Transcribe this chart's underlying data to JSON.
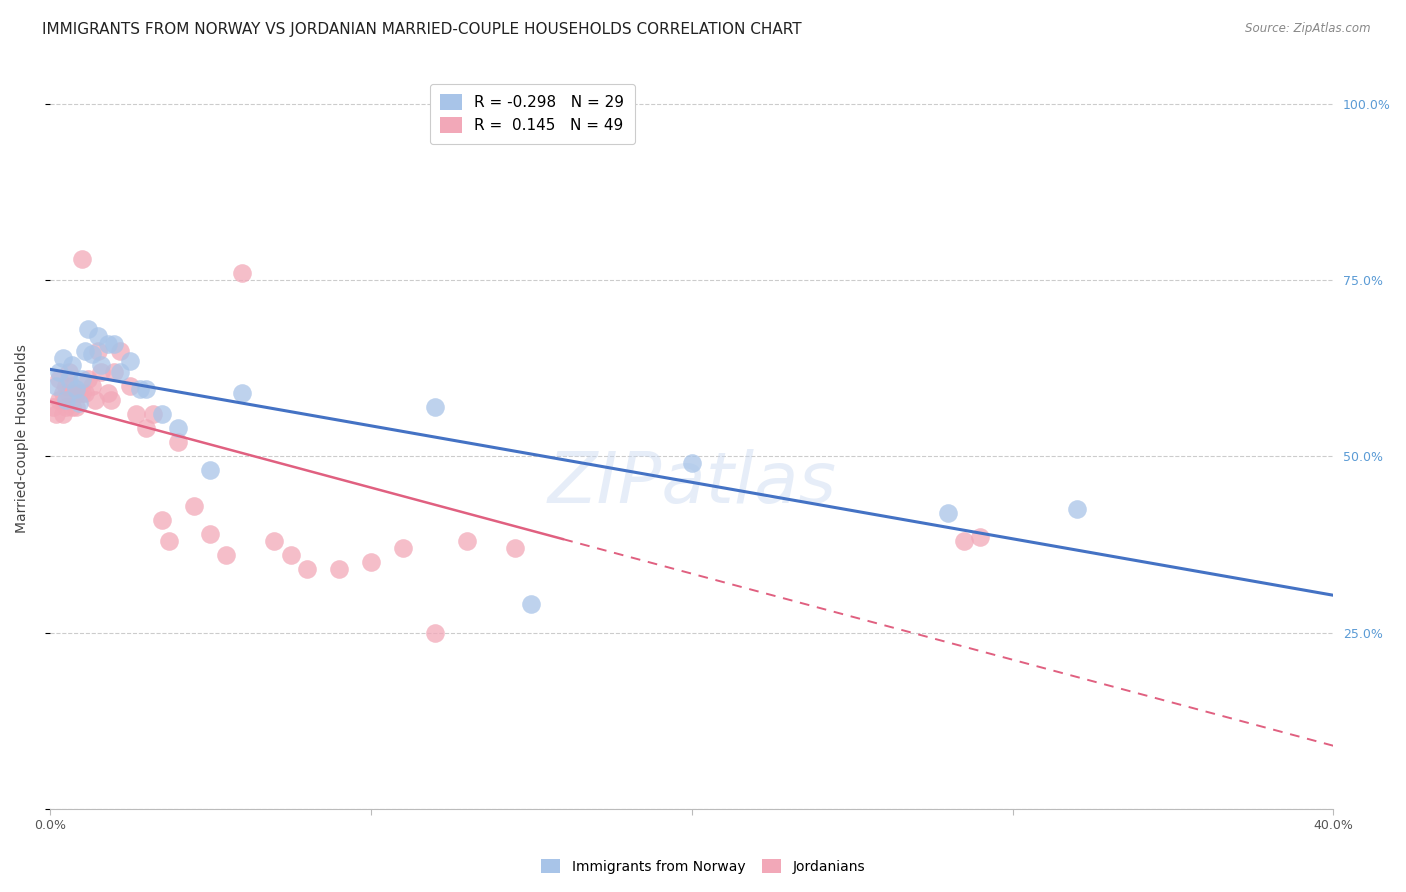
{
  "title": "IMMIGRANTS FROM NORWAY VS JORDANIAN MARRIED-COUPLE HOUSEHOLDS CORRELATION CHART",
  "source": "Source: ZipAtlas.com",
  "ylabel_label": "Married-couple Households",
  "xlim": [
    0.0,
    0.4
  ],
  "ylim": [
    0.0,
    1.05
  ],
  "norway_R": -0.298,
  "norway_N": 29,
  "jordan_R": 0.145,
  "jordan_N": 49,
  "norway_color": "#a8c4e8",
  "jordan_color": "#f2a8b8",
  "norway_line_color": "#4472c4",
  "jordan_line_color": "#e06080",
  "jordan_line_solid_end": 0.16,
  "background_color": "#ffffff",
  "grid_color": "#cccccc",
  "right_tick_color": "#5b9bd5",
  "norway_x": [
    0.002,
    0.003,
    0.004,
    0.005,
    0.006,
    0.007,
    0.008,
    0.009,
    0.01,
    0.011,
    0.012,
    0.013,
    0.015,
    0.016,
    0.018,
    0.02,
    0.022,
    0.025,
    0.028,
    0.03,
    0.035,
    0.04,
    0.05,
    0.06,
    0.12,
    0.15,
    0.2,
    0.28,
    0.32
  ],
  "norway_y": [
    0.6,
    0.62,
    0.64,
    0.58,
    0.61,
    0.63,
    0.595,
    0.575,
    0.61,
    0.65,
    0.68,
    0.645,
    0.67,
    0.63,
    0.66,
    0.66,
    0.62,
    0.635,
    0.595,
    0.595,
    0.56,
    0.54,
    0.48,
    0.59,
    0.57,
    0.29,
    0.49,
    0.42,
    0.425
  ],
  "jordan_x": [
    0.001,
    0.002,
    0.003,
    0.003,
    0.004,
    0.004,
    0.005,
    0.005,
    0.006,
    0.006,
    0.007,
    0.007,
    0.008,
    0.008,
    0.009,
    0.01,
    0.01,
    0.011,
    0.012,
    0.013,
    0.014,
    0.015,
    0.016,
    0.018,
    0.019,
    0.02,
    0.022,
    0.025,
    0.027,
    0.03,
    0.032,
    0.035,
    0.037,
    0.04,
    0.045,
    0.05,
    0.055,
    0.06,
    0.07,
    0.075,
    0.08,
    0.09,
    0.1,
    0.11,
    0.12,
    0.13,
    0.145,
    0.285,
    0.29
  ],
  "jordan_y": [
    0.57,
    0.56,
    0.58,
    0.61,
    0.56,
    0.59,
    0.6,
    0.57,
    0.59,
    0.62,
    0.6,
    0.57,
    0.59,
    0.57,
    0.59,
    0.78,
    0.59,
    0.59,
    0.61,
    0.6,
    0.58,
    0.65,
    0.62,
    0.59,
    0.58,
    0.62,
    0.65,
    0.6,
    0.56,
    0.54,
    0.56,
    0.41,
    0.38,
    0.52,
    0.43,
    0.39,
    0.36,
    0.76,
    0.38,
    0.36,
    0.34,
    0.34,
    0.35,
    0.37,
    0.25,
    0.38,
    0.37,
    0.38,
    0.385
  ],
  "watermark": "ZIPatlas",
  "title_fontsize": 11,
  "axis_fontsize": 10,
  "tick_fontsize": 9,
  "legend_fontsize": 11
}
